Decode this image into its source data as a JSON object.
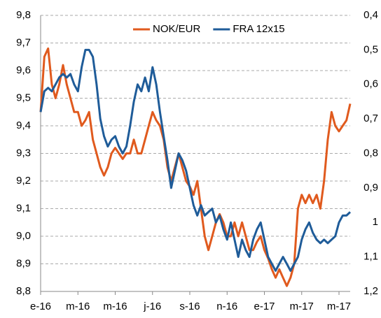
{
  "chart_data": {
    "type": "line",
    "categories": [
      "e-16",
      null,
      null,
      null,
      null,
      null,
      null,
      null,
      null,
      null,
      "m-16",
      null,
      null,
      null,
      null,
      null,
      null,
      null,
      null,
      null,
      "m-16",
      null,
      null,
      null,
      null,
      null,
      null,
      null,
      null,
      null,
      "j-16",
      null,
      null,
      null,
      null,
      null,
      null,
      null,
      null,
      null,
      "s-16",
      null,
      null,
      null,
      null,
      null,
      null,
      null,
      null,
      null,
      "n-16",
      null,
      null,
      null,
      null,
      null,
      null,
      null,
      null,
      null,
      "e-17",
      null,
      null,
      null,
      null,
      null,
      null,
      null,
      null,
      null,
      "m-17",
      null,
      null,
      null,
      null,
      null,
      null,
      null,
      null,
      null,
      "m-17",
      null,
      null,
      null
    ],
    "series": [
      {
        "name": "NOK/EUR",
        "color": "#e05a1e",
        "axis": "y",
        "values": [
          9.45,
          9.65,
          9.68,
          9.55,
          9.5,
          9.55,
          9.62,
          9.55,
          9.5,
          9.45,
          9.45,
          9.4,
          9.42,
          9.45,
          9.35,
          9.3,
          9.25,
          9.22,
          9.25,
          9.3,
          9.32,
          9.3,
          9.28,
          9.3,
          9.3,
          9.35,
          9.3,
          9.3,
          9.35,
          9.4,
          9.45,
          9.42,
          9.4,
          9.35,
          9.25,
          9.2,
          9.25,
          9.3,
          9.25,
          9.2,
          9.18,
          9.15,
          9.2,
          9.1,
          9.0,
          8.95,
          9.0,
          9.05,
          9.08,
          9.05,
          9.0,
          9.0,
          9.05,
          9.0,
          9.05,
          9.0,
          8.95,
          8.95,
          8.98,
          9.0,
          8.95,
          8.92,
          8.88,
          8.85,
          8.88,
          8.85,
          8.82,
          8.85,
          8.9,
          9.1,
          9.15,
          9.12,
          9.15,
          9.12,
          9.15,
          9.1,
          9.2,
          9.35,
          9.45,
          9.4,
          9.38,
          9.4,
          9.42,
          9.48
        ]
      },
      {
        "name": "FRA 12x15",
        "color": "#1f5c99",
        "axis": "y2",
        "values": [
          0.68,
          0.62,
          0.61,
          0.62,
          0.6,
          0.58,
          0.57,
          0.58,
          0.57,
          0.6,
          0.62,
          0.55,
          0.5,
          0.5,
          0.52,
          0.6,
          0.7,
          0.75,
          0.78,
          0.76,
          0.75,
          0.78,
          0.8,
          0.78,
          0.72,
          0.65,
          0.6,
          0.62,
          0.58,
          0.62,
          0.55,
          0.6,
          0.68,
          0.75,
          0.82,
          0.9,
          0.85,
          0.8,
          0.82,
          0.85,
          0.9,
          0.95,
          0.98,
          0.95,
          0.98,
          0.97,
          0.96,
          1.0,
          0.98,
          1.02,
          1.05,
          1.0,
          1.05,
          1.1,
          1.05,
          1.08,
          1.1,
          1.05,
          1.02,
          1.0,
          1.05,
          1.1,
          1.12,
          1.14,
          1.12,
          1.1,
          1.12,
          1.14,
          1.12,
          1.1,
          1.05,
          1.02,
          1.0,
          1.03,
          1.05,
          1.06,
          1.05,
          1.06,
          1.05,
          1.04,
          1.0,
          0.98,
          0.98,
          0.97
        ]
      }
    ],
    "ylim": [
      8.8,
      9.8
    ],
    "yticks": [
      {
        "value": 8.8,
        "label": "8,8"
      },
      {
        "value": 8.9,
        "label": "8,9"
      },
      {
        "value": 9.0,
        "label": "9,0"
      },
      {
        "value": 9.1,
        "label": "9,1"
      },
      {
        "value": 9.2,
        "label": "9,2"
      },
      {
        "value": 9.3,
        "label": "9,3"
      },
      {
        "value": 9.4,
        "label": "9,4"
      },
      {
        "value": 9.5,
        "label": "9,5"
      },
      {
        "value": 9.6,
        "label": "9,6"
      },
      {
        "value": 9.7,
        "label": "9,7"
      },
      {
        "value": 9.8,
        "label": "9,8"
      }
    ],
    "y2lim": [
      1.2,
      0.4
    ],
    "y2ticks": [
      {
        "value": 0.4,
        "label": "0,4"
      },
      {
        "value": 0.5,
        "label": "0,5"
      },
      {
        "value": 0.6,
        "label": "0,6"
      },
      {
        "value": 0.7,
        "label": "0,7"
      },
      {
        "value": 0.8,
        "label": "0,8"
      },
      {
        "value": 0.9,
        "label": "0,9"
      },
      1,
      {
        "value": 1.1,
        "label": "1,1"
      },
      {
        "value": 1.2,
        "label": "1,2"
      }
    ],
    "grid": true,
    "legend": "top"
  }
}
